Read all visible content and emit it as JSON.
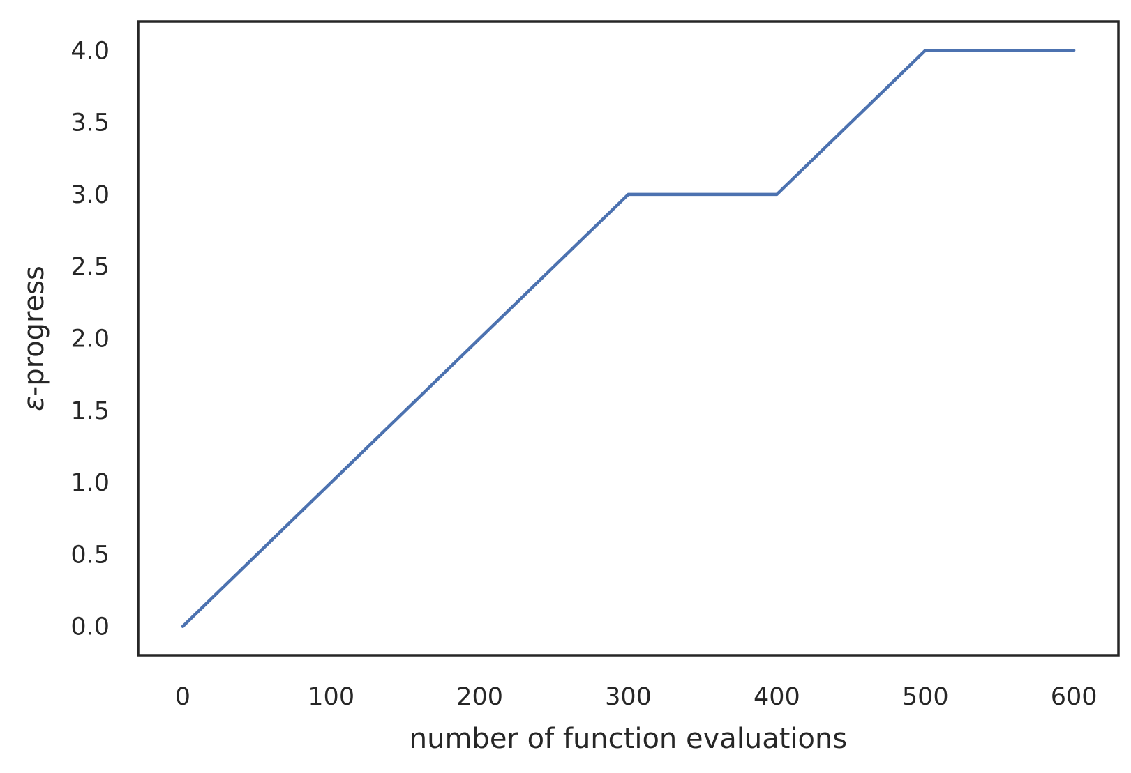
{
  "chart_data": {
    "type": "line",
    "title": "",
    "xlabel": "number of function evaluations",
    "ylabel_symbol": "ε",
    "ylabel_text": "-progress",
    "xlim": [
      -30,
      630
    ],
    "ylim": [
      -0.2,
      4.2
    ],
    "xticks": [
      0,
      100,
      200,
      300,
      400,
      500,
      600
    ],
    "xtick_labels": [
      "0",
      "100",
      "200",
      "300",
      "400",
      "500",
      "600"
    ],
    "yticks": [
      0.0,
      0.5,
      1.0,
      1.5,
      2.0,
      2.5,
      3.0,
      3.5,
      4.0
    ],
    "ytick_labels": [
      "0.0",
      "0.5",
      "1.0",
      "1.5",
      "2.0",
      "2.5",
      "3.0",
      "3.5",
      "4.0"
    ],
    "grid": false,
    "legend": "none",
    "series": [
      {
        "color": "#4c72b0",
        "x": [
          0,
          100,
          200,
          300,
          400,
          500,
          600
        ],
        "y": [
          0.0,
          1.0,
          2.0,
          3.0,
          3.0,
          4.0,
          4.0
        ]
      }
    ],
    "frame_color": "#262626"
  }
}
